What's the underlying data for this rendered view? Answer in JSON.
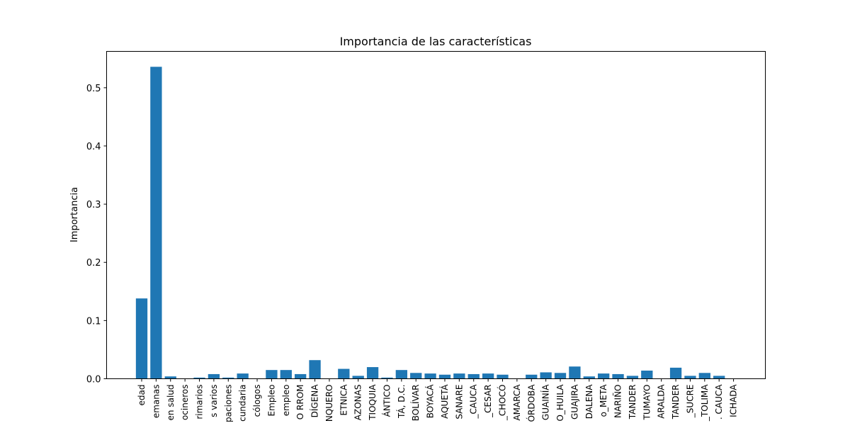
{
  "chart_data": {
    "type": "bar",
    "title": "Importancia de las características",
    "ylabel": "Importancia",
    "xlabel": "",
    "ylim": [
      0,
      0.5625
    ],
    "yticks": [
      0.0,
      0.1,
      0.2,
      0.3,
      0.4,
      0.5
    ],
    "ytick_labels": [
      "0.0",
      "0.1",
      "0.2",
      "0.3",
      "0.4",
      "0.5"
    ],
    "bar_color": "#1f77b4",
    "grid": false,
    "categories": [
      "edad",
      "emanas",
      "en salud",
      "ocineros",
      "rimarios",
      "s varios",
      "paciones",
      "cundaria",
      "cólogos",
      "Empleo",
      "empleo",
      "O RROM",
      "DÍGENA",
      "NQUERO",
      "ETNICA",
      "AZONAS",
      "TIOQUIA",
      "ÁNTICO",
      "TÁ, D.C.",
      "BOLÍVAR",
      "BOYACÁ",
      "AQUETÁ",
      "SANARE",
      "_CAUCA",
      "_CESAR",
      "_CHOCÓ",
      "AMARCA",
      "ÓRDOBA",
      "GUAINÍA",
      "O_HUILA",
      "GUAJIRA",
      "DALENA",
      "o_META",
      "NARIÑO",
      "TANDER",
      "TUMAYO",
      "ARALDA",
      "TANDER",
      "_SUCRE",
      "_TOLIMA",
      ". CAUCA",
      "ICHADA"
    ],
    "values": [
      0.138,
      0.536,
      0.004,
      0.0,
      0.002,
      0.008,
      0.002,
      0.009,
      0.0,
      0.015,
      0.015,
      0.008,
      0.032,
      0.0,
      0.017,
      0.005,
      0.02,
      0.002,
      0.015,
      0.01,
      0.009,
      0.007,
      0.009,
      0.008,
      0.009,
      0.007,
      0.0,
      0.007,
      0.011,
      0.01,
      0.021,
      0.004,
      0.009,
      0.008,
      0.005,
      0.014,
      0.0,
      0.019,
      0.005,
      0.01,
      0.005,
      0.0
    ]
  }
}
